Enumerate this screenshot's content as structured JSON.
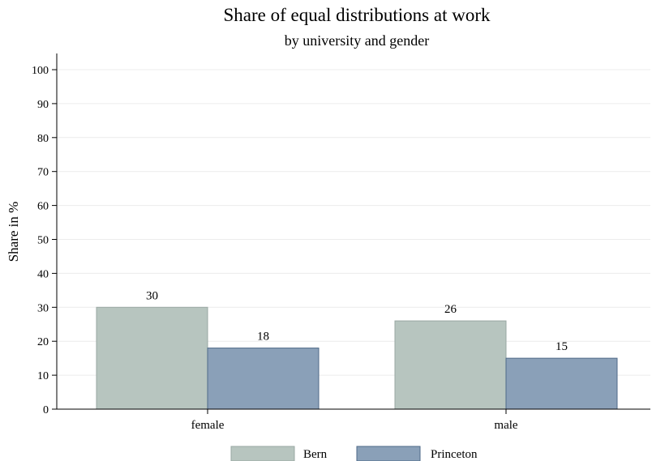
{
  "chart_data": {
    "type": "bar",
    "title": "Share of equal distributions at work",
    "subtitle": "by university and gender",
    "ylabel": "Share in %",
    "xlabel": "",
    "categories": [
      "female",
      "male"
    ],
    "series": [
      {
        "name": "Bern",
        "values": [
          30,
          26
        ],
        "labels": [
          "30",
          "26"
        ],
        "color": "#b7c5bf"
      },
      {
        "name": "Princeton",
        "values": [
          18,
          15
        ],
        "labels": [
          "18",
          "15"
        ],
        "color": "#8aa0b8"
      }
    ],
    "ylim": [
      0,
      100
    ],
    "yticks": [
      0,
      10,
      20,
      30,
      40,
      50,
      60,
      70,
      80,
      90,
      100
    ],
    "grid": true,
    "legend_position": "bottom",
    "colors": {
      "gridline": "#ececec",
      "bar_stroke_bern": "#9aa8a3",
      "bar_stroke_princeton": "#4f6a88",
      "axis": "#000000"
    }
  }
}
